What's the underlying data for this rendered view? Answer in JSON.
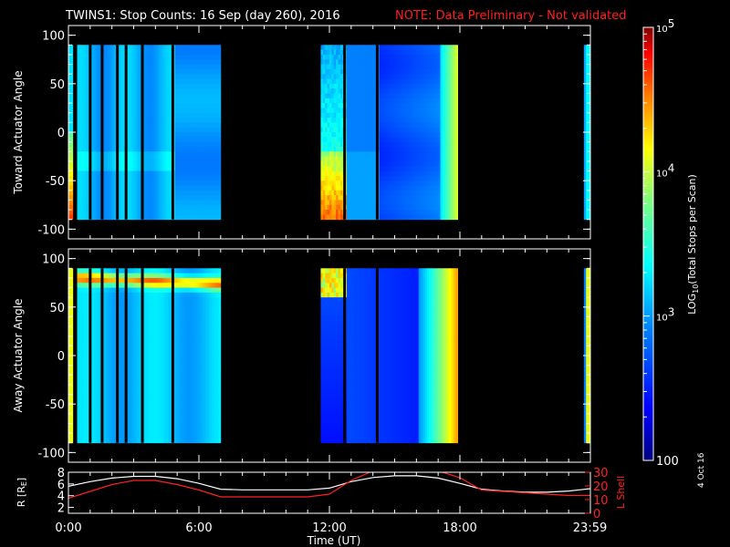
{
  "title": "TWINS1: Stop Counts: 16 Sep (day 260), 2016",
  "note": "NOTE: Data Preliminary - Not validated",
  "date_stamp": "4 Oct 16",
  "colorbar": {
    "label": "LOG10(Total Stops per Scan)",
    "ticks": [
      "10^5",
      "10^4",
      "10^3",
      "100"
    ],
    "tick_values": [
      100000,
      10000,
      1000,
      100
    ],
    "range": [
      100,
      100000
    ],
    "scale": "log",
    "colormap": [
      "#00007f",
      "#0000ff",
      "#007fff",
      "#00ffff",
      "#7fff7f",
      "#ffff00",
      "#ff7f00",
      "#ff0000",
      "#7f0000"
    ]
  },
  "chart_data": [
    {
      "type": "heatmap",
      "panel": "top",
      "ylabel": "Toward Actuator Angle",
      "yticks": [
        "100",
        "50",
        "0",
        "-50",
        "-100"
      ],
      "ylim": [
        -110,
        110
      ],
      "data_y_range": [
        -90,
        90
      ],
      "xlim": [
        0,
        24
      ],
      "coverage_hours": [
        [
          0.0,
          0.2
        ],
        [
          0.4,
          7.0
        ],
        [
          11.6,
          17.9
        ],
        [
          23.7,
          24.0
        ]
      ],
      "segments": [
        {
          "x": [
            0.0,
            0.2
          ],
          "level": "high, angle 0 to -90"
        },
        {
          "x": [
            0.4,
            4.8
          ],
          "level": "mid (~1e3)"
        },
        {
          "x": [
            4.8,
            7.0
          ],
          "level": "mid (~1e3)"
        },
        {
          "x": [
            11.6,
            12.6
          ],
          "level": "high near -30 to -90 (>1e4)"
        },
        {
          "x": [
            12.6,
            14.2
          ],
          "level": "mid-low"
        },
        {
          "x": [
            14.2,
            17.0
          ],
          "level": "low (~5e2)"
        },
        {
          "x": [
            17.0,
            17.9
          ],
          "level": "rising to high"
        },
        {
          "x": [
            23.7,
            24.0
          ],
          "level": "mid"
        }
      ]
    },
    {
      "type": "heatmap",
      "panel": "middle",
      "ylabel": "Away Actuator Angle",
      "yticks": [
        "100",
        "50",
        "0",
        "-50",
        "-100"
      ],
      "ylim": [
        -110,
        110
      ],
      "data_y_range": [
        -90,
        90
      ],
      "xlim": [
        0,
        24
      ],
      "coverage_hours": [
        [
          0.0,
          0.2
        ],
        [
          0.4,
          7.0
        ],
        [
          11.6,
          17.9
        ],
        [
          23.7,
          24.0
        ]
      ],
      "segments": [
        {
          "x": [
            0.0,
            0.2
          ],
          "level": "high"
        },
        {
          "x": [
            0.4,
            4.8
          ],
          "level": "mid, band high near +80"
        },
        {
          "x": [
            4.8,
            7.0
          ],
          "level": "mid, band high near +75"
        },
        {
          "x": [
            11.6,
            12.6
          ],
          "level": "high near +90, low below"
        },
        {
          "x": [
            12.6,
            16.0
          ],
          "level": "low"
        },
        {
          "x": [
            16.0,
            17.9
          ],
          "level": "mid to high"
        },
        {
          "x": [
            23.7,
            24.0
          ],
          "level": "high"
        }
      ]
    },
    {
      "type": "line",
      "panel": "bottom",
      "ylabel": "R [RE]",
      "y2label": "L Shell",
      "yticks": [
        "8",
        "6",
        "4",
        "2"
      ],
      "ylim": [
        1,
        8
      ],
      "y2ticks": [
        "30",
        "20",
        "10",
        "0"
      ],
      "y2lim": [
        0,
        30
      ],
      "xlabel": "Time (UT)",
      "xticks": [
        "0:00",
        "6:00",
        "12:00",
        "18:00",
        "23:59"
      ],
      "xtick_values": [
        0,
        6,
        12,
        18,
        23.98
      ],
      "series": [
        {
          "color": "#ffffff",
          "axis": "R",
          "x": [
            0,
            1,
            2,
            3,
            4,
            5,
            6,
            7,
            8,
            9,
            10,
            11,
            12,
            13,
            14,
            15,
            16,
            17,
            18,
            19,
            20,
            21,
            22,
            23,
            24
          ],
          "values": [
            5.6,
            6.4,
            7.0,
            7.3,
            7.3,
            6.9,
            6.1,
            5.1,
            5.0,
            5.0,
            5.0,
            5.0,
            5.3,
            6.4,
            7.1,
            7.4,
            7.4,
            7.0,
            6.1,
            5.1,
            4.8,
            4.6,
            4.6,
            4.8,
            5.2
          ]
        },
        {
          "color": "#ff2020",
          "axis": "L",
          "x": [
            0,
            1,
            2,
            3,
            4,
            5,
            6,
            7,
            8,
            9,
            10,
            11,
            12,
            13,
            14,
            15,
            16,
            17,
            18,
            19,
            20,
            21,
            22,
            23,
            24
          ],
          "values": [
            11,
            16,
            21,
            24,
            24,
            21,
            17,
            12,
            12,
            12,
            12,
            12,
            14,
            24,
            31,
            31,
            31,
            31,
            26,
            17,
            16,
            15,
            14,
            13,
            13
          ]
        }
      ]
    }
  ]
}
